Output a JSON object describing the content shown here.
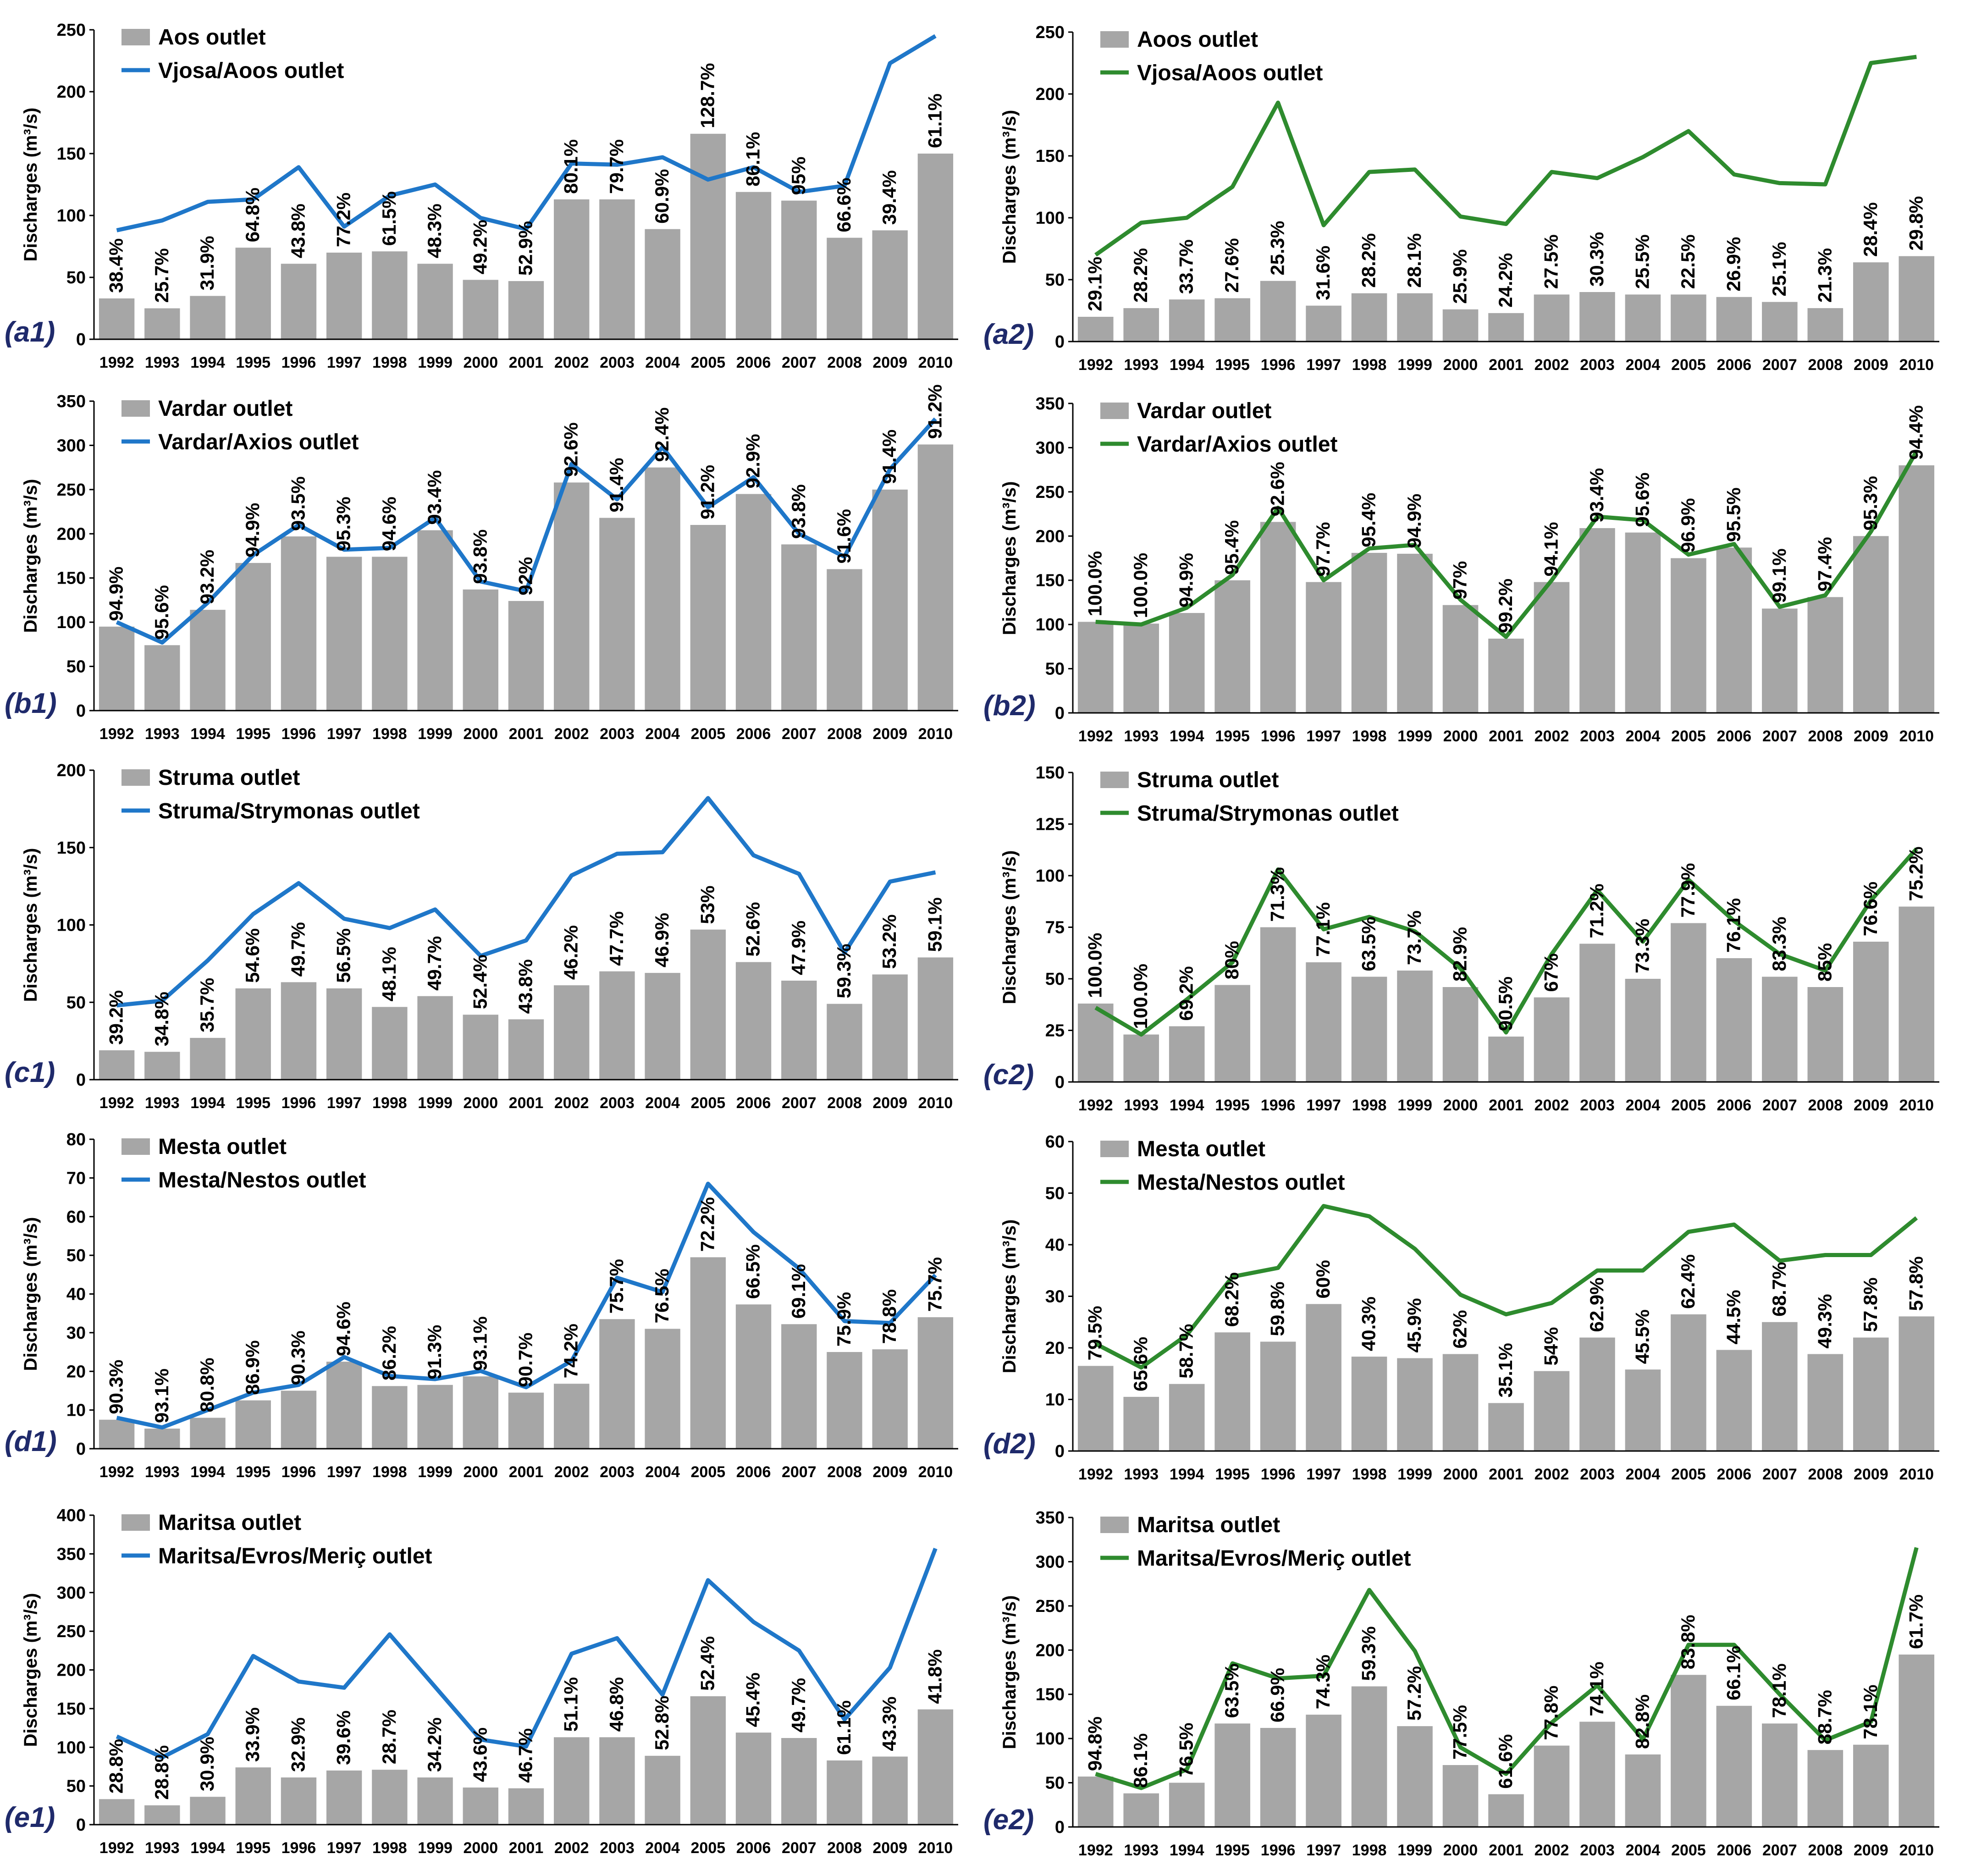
{
  "years": [
    "1992",
    "1993",
    "1994",
    "1995",
    "1996",
    "1997",
    "1998",
    "1999",
    "2000",
    "2001",
    "2002",
    "2003",
    "2004",
    "2005",
    "2006",
    "2007",
    "2008",
    "2009",
    "2010"
  ],
  "colors": {
    "bar": "#a6a6a6",
    "line_left": "#1f77c9",
    "line_right": "#2e8b2e",
    "panel_label": "#1f2a6b",
    "axis": "#000000"
  },
  "ylabel": "Discharges (m³/s)",
  "chart_data": [
    {
      "id": "a1",
      "type": "bar",
      "panel_label": "(a1)",
      "bar_name": "Aos outlet",
      "line_name": "Vjosa/Aoos outlet",
      "line_color": "left",
      "ylabel": "Discharges (m³/s)",
      "ylim": [
        0,
        250
      ],
      "yticks": [
        0,
        50,
        100,
        150,
        200,
        250
      ],
      "bars": [
        33,
        25,
        35,
        74,
        61,
        70,
        71,
        61,
        48,
        47,
        113,
        113,
        89,
        166,
        119,
        112,
        82,
        88,
        150
      ],
      "line": [
        88,
        96,
        111,
        113,
        139,
        91,
        116,
        125,
        98,
        89,
        142,
        141,
        147,
        129,
        139,
        119,
        124,
        223,
        245
      ],
      "pct": [
        "38.4%",
        "25.7%",
        "31.9%",
        "64.8%",
        "43.8%",
        "77.2%",
        "61.5%",
        "48.3%",
        "49.2%",
        "52.9%",
        "80.1%",
        "79.7%",
        "60.9%",
        "128.7%",
        "86.1%",
        "95%",
        "66.6%",
        "39.4%",
        "61.1%"
      ]
    },
    {
      "id": "a2",
      "type": "bar",
      "panel_label": "(a2)",
      "bar_name": "Aoos outlet",
      "line_name": "Vjosa/Aoos outlet",
      "line_color": "right",
      "ylabel": "Discharges (m³/s)",
      "ylim": [
        0,
        250
      ],
      "yticks": [
        0,
        50,
        100,
        150,
        200,
        250
      ],
      "bars": [
        20,
        27,
        34,
        35,
        49,
        29,
        39,
        39,
        26,
        23,
        38,
        40,
        38,
        38,
        36,
        32,
        27,
        64,
        69
      ],
      "line": [
        70,
        96,
        100,
        125,
        193,
        94,
        137,
        139,
        101,
        95,
        137,
        132,
        149,
        170,
        135,
        128,
        127,
        225,
        230
      ],
      "pct": [
        "29.1%",
        "28.2%",
        "33.7%",
        "27.6%",
        "25.3%",
        "31.6%",
        "28.2%",
        "28.1%",
        "25.9%",
        "24.2%",
        "27.5%",
        "30.3%",
        "25.5%",
        "22.5%",
        "26.9%",
        "25.1%",
        "21.3%",
        "28.4%",
        "29.8%"
      ]
    },
    {
      "id": "b1",
      "type": "bar",
      "panel_label": "(b1)",
      "bar_name": "Vardar outlet",
      "line_name": "Vardar/Axios outlet",
      "line_color": "left",
      "ylabel": "Discharges (m³/s)",
      "ylim": [
        0,
        350
      ],
      "yticks": [
        0,
        50,
        100,
        150,
        200,
        250,
        300,
        350
      ],
      "bars": [
        95,
        74,
        114,
        167,
        197,
        174,
        174,
        204,
        137,
        124,
        258,
        218,
        275,
        210,
        245,
        188,
        160,
        250,
        301
      ],
      "line": [
        100,
        77,
        122,
        176,
        210,
        182,
        184,
        218,
        146,
        135,
        279,
        239,
        298,
        230,
        264,
        200,
        174,
        273,
        330
      ],
      "pct": [
        "94.9%",
        "95.6%",
        "93.2%",
        "94.9%",
        "93.5%",
        "95.3%",
        "94.6%",
        "93.4%",
        "93.8%",
        "92%",
        "92.6%",
        "91.4%",
        "92.4%",
        "91.2%",
        "92.9%",
        "93.8%",
        "91.6%",
        "91.4%",
        "91.2%"
      ]
    },
    {
      "id": "b2",
      "type": "bar",
      "panel_label": "(b2)",
      "bar_name": "Vardar outlet",
      "line_name": "Vardar/Axios outlet",
      "line_color": "right",
      "ylabel": "Discharges (m³/s)",
      "ylim": [
        0,
        350
      ],
      "yticks": [
        0,
        50,
        100,
        150,
        200,
        250,
        300,
        350
      ],
      "bars": [
        103,
        101,
        113,
        150,
        216,
        148,
        181,
        180,
        122,
        84,
        148,
        209,
        204,
        175,
        187,
        118,
        131,
        200,
        280
      ],
      "line": [
        103,
        100,
        119,
        156,
        232,
        150,
        186,
        190,
        128,
        86,
        150,
        222,
        218,
        179,
        191,
        120,
        133,
        205,
        296
      ],
      "pct": [
        "100.0%",
        "100.0%",
        "94.9%",
        "95.4%",
        "92.6%",
        "97.7%",
        "95.4%",
        "94.9%",
        "97%",
        "99.2%",
        "94.1%",
        "93.4%",
        "95.6%",
        "96.9%",
        "95.5%",
        "99.1%",
        "97.4%",
        "95.3%",
        "94.4%"
      ]
    },
    {
      "id": "c1",
      "type": "bar",
      "panel_label": "(c1)",
      "bar_name": "Struma outlet",
      "line_name": "Struma/Strymonas outlet",
      "line_color": "left",
      "ylabel": "Discharges (m³/s)",
      "ylim": [
        0,
        200
      ],
      "yticks": [
        0,
        50,
        100,
        150,
        200
      ],
      "bars": [
        19,
        18,
        27,
        59,
        63,
        59,
        47,
        54,
        42,
        39,
        61,
        70,
        69,
        97,
        76,
        64,
        49,
        68,
        79
      ],
      "line": [
        48,
        51,
        77,
        107,
        127,
        104,
        98,
        110,
        80,
        90,
        132,
        146,
        147,
        182,
        145,
        133,
        82,
        128,
        134
      ],
      "pct": [
        "39.2%",
        "34.8%",
        "35.7%",
        "54.6%",
        "49.7%",
        "56.5%",
        "48.1%",
        "49.7%",
        "52.4%",
        "43.8%",
        "46.2%",
        "47.7%",
        "46.9%",
        "53%",
        "52.6%",
        "47.9%",
        "59.3%",
        "53.2%",
        "59.1%"
      ]
    },
    {
      "id": "c2",
      "type": "bar",
      "panel_label": "(c2)",
      "bar_name": "Struma outlet",
      "line_name": "Struma/Strymonas outlet",
      "line_color": "right",
      "ylabel": "Discharges (m³/s)",
      "ylim": [
        0,
        150
      ],
      "yticks": [
        0,
        25,
        50,
        75,
        100,
        125,
        150
      ],
      "bars": [
        38,
        23,
        27,
        47,
        75,
        58,
        51,
        54,
        46,
        22,
        41,
        67,
        50,
        77,
        60,
        51,
        46,
        68,
        85
      ],
      "line": [
        36,
        23,
        40,
        58,
        103,
        74,
        80,
        73,
        55,
        24,
        62,
        93,
        68,
        98,
        78,
        62,
        54,
        88,
        113
      ],
      "pct": [
        "100.0%",
        "100.0%",
        "69.2%",
        "80%",
        "71.3%",
        "77.1%",
        "63.5%",
        "73.7%",
        "82.9%",
        "90.5%",
        "67%",
        "71.2%",
        "73.3%",
        "77.9%",
        "76.1%",
        "83.3%",
        "85%",
        "76.6%",
        "75.2%"
      ]
    },
    {
      "id": "d1",
      "type": "bar",
      "panel_label": "(d1)",
      "bar_name": "Mesta outlet",
      "line_name": "Mesta/Nestos outlet",
      "line_color": "left",
      "ylabel": "Discharges (m³/s)",
      "ylim": [
        0,
        80
      ],
      "yticks": [
        0,
        10,
        20,
        30,
        40,
        50,
        60,
        70,
        80
      ],
      "bars": [
        7.5,
        5.2,
        8,
        12.5,
        15,
        22.5,
        16.2,
        16.5,
        18.7,
        14.5,
        16.8,
        33.5,
        31,
        49.5,
        37.3,
        32.2,
        25,
        25.7,
        34
      ],
      "line": [
        8,
        5.5,
        10,
        14.5,
        16.5,
        23.7,
        18.8,
        18,
        20.1,
        15.9,
        22.7,
        44.2,
        40.5,
        68.5,
        56,
        46.6,
        33,
        32.5,
        44.9
      ],
      "pct": [
        "90.3%",
        "93.1%",
        "80.8%",
        "86.9%",
        "90.3%",
        "94.6%",
        "86.2%",
        "91.3%",
        "93.1%",
        "90.7%",
        "74.2%",
        "75.7%",
        "76.5%",
        "72.2%",
        "66.5%",
        "69.1%",
        "75.9%",
        "78.8%",
        "75.7%"
      ]
    },
    {
      "id": "d2",
      "type": "bar",
      "panel_label": "(d2)",
      "bar_name": "Mesta outlet",
      "line_name": "Mesta/Nestos outlet",
      "line_color": "right",
      "ylabel": "Discharges (m³/s)",
      "ylim": [
        0,
        60
      ],
      "yticks": [
        0,
        10,
        20,
        30,
        40,
        50,
        60
      ],
      "bars": [
        16.5,
        10.5,
        13,
        23,
        21.2,
        28.5,
        18.3,
        18,
        18.8,
        9.3,
        15.5,
        22,
        15.8,
        26.5,
        19.6,
        25,
        18.8,
        22,
        26.1
      ],
      "line": [
        20.8,
        16.2,
        22.5,
        33.8,
        35.5,
        47.5,
        45.5,
        39.2,
        30.3,
        26.5,
        28.7,
        35,
        35,
        42.5,
        43.9,
        36.9,
        38,
        38,
        45.2
      ],
      "pct": [
        "79.5%",
        "65.6%",
        "58.7%",
        "68.2%",
        "59.8%",
        "60%",
        "40.3%",
        "45.9%",
        "62%",
        "35.1%",
        "54%",
        "62.9%",
        "45.5%",
        "62.4%",
        "44.5%",
        "68.7%",
        "49.3%",
        "57.8%",
        "57.8%"
      ]
    },
    {
      "id": "e1",
      "type": "bar",
      "panel_label": "(e1)",
      "bar_name": "Maritsa outlet",
      "line_name": "Maritsa/Evros/Meriç outlet",
      "line_color": "left",
      "ylabel": "Discharges (m³/s)",
      "ylim": [
        0,
        400
      ],
      "yticks": [
        0,
        50,
        100,
        150,
        200,
        250,
        300,
        350,
        400
      ],
      "bars": [
        33,
        25,
        36,
        74,
        61,
        70,
        71,
        61,
        48,
        47,
        113,
        113,
        89,
        166,
        119,
        112,
        83,
        88,
        149
      ],
      "line": [
        114,
        87,
        117,
        218,
        185,
        177,
        246,
        178,
        110,
        101,
        221,
        241,
        168,
        316,
        262,
        225,
        136,
        203,
        357
      ],
      "pct": [
        "28.8%",
        "28.8%",
        "30.9%",
        "33.9%",
        "32.9%",
        "39.6%",
        "28.7%",
        "34.2%",
        "43.6%",
        "46.7%",
        "51.1%",
        "46.8%",
        "52.8%",
        "52.4%",
        "45.4%",
        "49.7%",
        "61.1%",
        "43.3%",
        "41.8%"
      ]
    },
    {
      "id": "e2",
      "type": "bar",
      "panel_label": "(e2)",
      "bar_name": "Maritsa outlet",
      "line_name": "Maritsa/Evros/Meriç outlet",
      "line_color": "right",
      "ylabel": "Discharges (m³/s)",
      "ylim": [
        0,
        350
      ],
      "yticks": [
        0,
        50,
        100,
        150,
        200,
        250,
        300,
        350
      ],
      "bars": [
        57,
        38,
        50,
        117,
        112,
        127,
        159,
        114,
        70,
        37,
        92,
        119,
        82,
        172,
        137,
        117,
        87,
        93,
        195
      ],
      "line": [
        60,
        44,
        65,
        185,
        168,
        171,
        268,
        199,
        90,
        60,
        118,
        160,
        99,
        206,
        206,
        150,
        98,
        119,
        316
      ],
      "pct": [
        "94.8%",
        "86.1%",
        "76.5%",
        "63.5%",
        "66.9%",
        "74.3%",
        "59.3%",
        "57.2%",
        "77.5%",
        "61.6%",
        "77.8%",
        "74.1%",
        "82.8%",
        "83.8%",
        "66.1%",
        "78.1%",
        "88.7%",
        "78.1%",
        "61.7%"
      ]
    }
  ]
}
